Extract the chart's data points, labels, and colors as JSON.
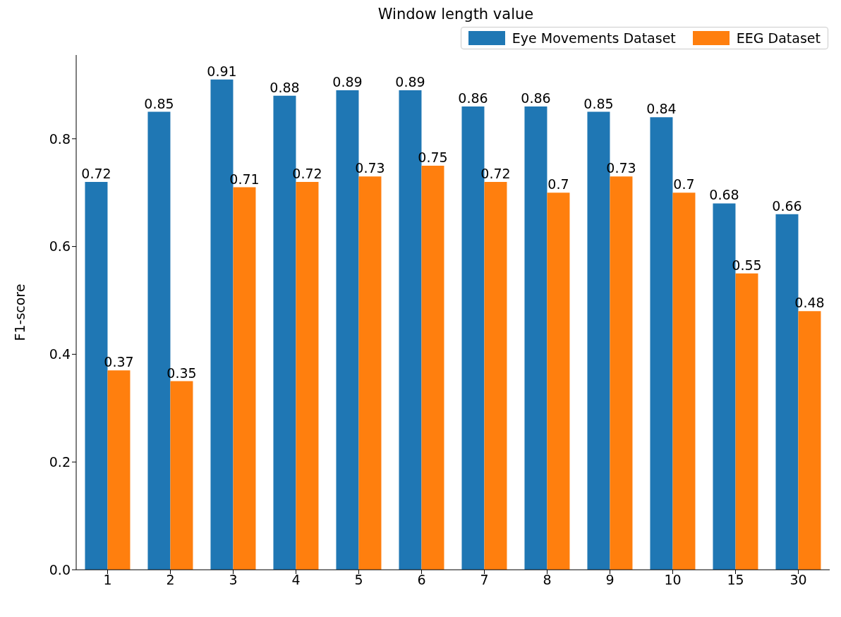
{
  "chart_data": {
    "type": "bar",
    "title": "Window length value",
    "ylabel": "F1-score",
    "categories": [
      "1",
      "2",
      "3",
      "4",
      "5",
      "6",
      "7",
      "8",
      "9",
      "10",
      "15",
      "30"
    ],
    "series": [
      {
        "name": "Eye Movements Dataset",
        "color": "#1f77b4",
        "values": [
          0.72,
          0.85,
          0.91,
          0.88,
          0.89,
          0.89,
          0.86,
          0.86,
          0.85,
          0.84,
          0.68,
          0.66
        ]
      },
      {
        "name": "EEG Dataset",
        "color": "#ff7f0e",
        "values": [
          0.37,
          0.35,
          0.71,
          0.72,
          0.73,
          0.75,
          0.72,
          0.7,
          0.73,
          0.7,
          0.55,
          0.48
        ]
      }
    ],
    "ylim": [
      0,
      0.9555
    ],
    "yticks": [
      {
        "value": 0,
        "label": "0.0"
      },
      {
        "value": 0.2,
        "label": "0.2"
      },
      {
        "value": 0.4,
        "label": "0.4"
      },
      {
        "value": 0.6,
        "label": "0.6"
      },
      {
        "value": 0.8,
        "label": "0.8"
      }
    ],
    "data_labels": true,
    "legend": "top right",
    "grid": false
  }
}
